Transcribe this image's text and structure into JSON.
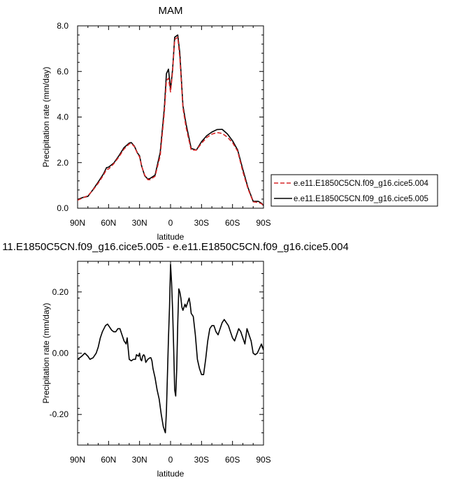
{
  "chart_data": [
    {
      "type": "line",
      "title": "MAM",
      "xlabel": "latitude",
      "ylabel": "Precipitation rate (mm/day)",
      "xlim": [
        90,
        -90
      ],
      "ylim": [
        0,
        8
      ],
      "xticks": [
        {
          "value": 90,
          "label": "90N"
        },
        {
          "value": 60,
          "label": "60N"
        },
        {
          "value": 30,
          "label": "30N"
        },
        {
          "value": 0,
          "label": "0"
        },
        {
          "value": -30,
          "label": "30S"
        },
        {
          "value": -60,
          "label": "60S"
        },
        {
          "value": -90,
          "label": "90S"
        }
      ],
      "yticks": [
        {
          "value": 0,
          "label": "0.0"
        },
        {
          "value": 2,
          "label": "2.0"
        },
        {
          "value": 4,
          "label": "4.0"
        },
        {
          "value": 6,
          "label": "6.0"
        },
        {
          "value": 8,
          "label": "8.0"
        }
      ],
      "grid": false,
      "legend_position": "right",
      "series": [
        {
          "name": "e.e11.E1850C5CN.f09_g16.cice5.004",
          "color": "#d62728",
          "dash": "dashed",
          "x": [
            90,
            85,
            80,
            75,
            70,
            65,
            62,
            60,
            55,
            50,
            45,
            40,
            38,
            35,
            32,
            30,
            28,
            25,
            22,
            20,
            15,
            10,
            6,
            4,
            2,
            0,
            -2,
            -4,
            -7,
            -9,
            -12,
            -15,
            -20,
            -25,
            -30,
            -35,
            -40,
            -45,
            -50,
            -55,
            -60,
            -65,
            -70,
            -75,
            -80,
            -85,
            -88,
            -90
          ],
          "y": [
            0.35,
            0.45,
            0.55,
            0.8,
            1.1,
            1.45,
            1.7,
            1.72,
            1.95,
            2.25,
            2.6,
            2.82,
            2.85,
            2.7,
            2.4,
            2.25,
            1.85,
            1.45,
            1.25,
            1.25,
            1.4,
            2.3,
            4.2,
            5.6,
            5.7,
            5.1,
            6.0,
            7.4,
            7.5,
            6.6,
            4.4,
            3.55,
            2.55,
            2.55,
            2.85,
            3.1,
            3.25,
            3.32,
            3.28,
            3.12,
            2.88,
            2.5,
            1.6,
            0.85,
            0.28,
            0.25,
            0.2,
            0.12
          ]
        },
        {
          "name": "e.e11.E1850C5CN.f09_g16.cice5.005",
          "color": "#000000",
          "dash": "solid",
          "x": [
            90,
            85,
            80,
            75,
            70,
            65,
            62,
            60,
            55,
            50,
            45,
            40,
            38,
            35,
            32,
            30,
            28,
            25,
            22,
            20,
            15,
            10,
            6,
            4,
            2,
            0,
            -2,
            -4,
            -7,
            -9,
            -12,
            -15,
            -20,
            -25,
            -30,
            -35,
            -40,
            -45,
            -50,
            -55,
            -60,
            -65,
            -70,
            -75,
            -80,
            -85,
            -88,
            -90
          ],
          "y": [
            0.38,
            0.47,
            0.52,
            0.82,
            1.15,
            1.5,
            1.78,
            1.8,
            1.98,
            2.3,
            2.66,
            2.86,
            2.88,
            2.72,
            2.42,
            2.3,
            1.85,
            1.42,
            1.28,
            1.3,
            1.45,
            2.45,
            4.4,
            5.9,
            6.1,
            5.2,
            6.1,
            7.5,
            7.6,
            6.8,
            4.5,
            3.7,
            2.62,
            2.55,
            2.92,
            3.18,
            3.34,
            3.45,
            3.46,
            3.26,
            2.96,
            2.55,
            1.7,
            0.9,
            0.3,
            0.3,
            0.22,
            0.12
          ]
        }
      ]
    },
    {
      "type": "line",
      "title": "11.E1850C5CN.f09_g16.cice5.005 - e.e11.E1850C5CN.f09_g16.cice5.004",
      "xlabel": "latitude",
      "ylabel": "Precipitation rate (mm/day)",
      "xlim": [
        90,
        -90
      ],
      "ylim": [
        -0.3,
        0.3
      ],
      "xticks": [
        {
          "value": 90,
          "label": "90N"
        },
        {
          "value": 60,
          "label": "60N"
        },
        {
          "value": 30,
          "label": "30N"
        },
        {
          "value": 0,
          "label": "0"
        },
        {
          "value": -30,
          "label": "30S"
        },
        {
          "value": -60,
          "label": "60S"
        },
        {
          "value": -90,
          "label": "90S"
        }
      ],
      "yticks": [
        {
          "value": -0.2,
          "label": "-0.20"
        },
        {
          "value": 0,
          "label": "0.00"
        },
        {
          "value": 0.2,
          "label": "0.20"
        }
      ],
      "grid": false,
      "series": [
        {
          "name": "",
          "color": "#000000",
          "dash": "solid",
          "x": [
            90,
            86,
            83,
            80,
            78,
            75,
            72,
            70,
            68,
            66,
            63,
            61,
            59,
            57,
            55,
            53,
            51,
            49,
            47,
            45,
            43,
            42,
            40,
            38,
            36,
            34,
            33,
            31,
            30,
            29,
            28,
            27,
            26,
            25,
            24,
            22,
            20,
            19,
            18,
            17,
            15,
            13,
            11,
            9,
            7,
            5,
            4,
            3,
            2,
            1,
            0,
            -1,
            -2,
            -3,
            -4,
            -5,
            -6,
            -7,
            -8,
            -9,
            -10,
            -11,
            -12,
            -13,
            -14,
            -15,
            -16,
            -17,
            -18,
            -19,
            -20,
            -22,
            -24,
            -26,
            -28,
            -30,
            -32,
            -34,
            -36,
            -38,
            -40,
            -42,
            -44,
            -46,
            -48,
            -50,
            -52,
            -54,
            -56,
            -58,
            -60,
            -62,
            -64,
            -66,
            -68,
            -70,
            -72,
            -74,
            -76,
            -78,
            -80,
            -82,
            -84,
            -86,
            -88,
            -90
          ],
          "y": [
            -0.02,
            -0.01,
            0.0,
            -0.01,
            -0.02,
            -0.015,
            0.0,
            0.02,
            0.05,
            0.07,
            0.09,
            0.095,
            0.085,
            0.075,
            0.07,
            0.07,
            0.08,
            0.08,
            0.06,
            0.04,
            0.03,
            0.05,
            -0.02,
            -0.025,
            -0.02,
            -0.02,
            -0.005,
            -0.01,
            0.0,
            -0.02,
            -0.025,
            -0.01,
            -0.005,
            -0.01,
            -0.03,
            -0.02,
            -0.015,
            -0.015,
            -0.025,
            -0.05,
            -0.08,
            -0.12,
            -0.15,
            -0.2,
            -0.24,
            -0.26,
            -0.19,
            -0.07,
            0.05,
            0.15,
            0.29,
            0.23,
            0.14,
            0.02,
            -0.12,
            -0.14,
            -0.05,
            0.1,
            0.21,
            0.2,
            0.18,
            0.15,
            0.14,
            0.15,
            0.16,
            0.15,
            0.16,
            0.17,
            0.18,
            0.16,
            0.13,
            0.12,
            0.06,
            -0.02,
            -0.05,
            -0.07,
            -0.07,
            -0.02,
            0.04,
            0.08,
            0.09,
            0.09,
            0.07,
            0.06,
            0.08,
            0.1,
            0.11,
            0.1,
            0.09,
            0.07,
            0.05,
            0.04,
            0.06,
            0.08,
            0.07,
            0.05,
            0.03,
            0.08,
            0.06,
            0.04,
            0.0,
            -0.005,
            0.0,
            0.015,
            0.03,
            0.01
          ]
        }
      ]
    }
  ]
}
